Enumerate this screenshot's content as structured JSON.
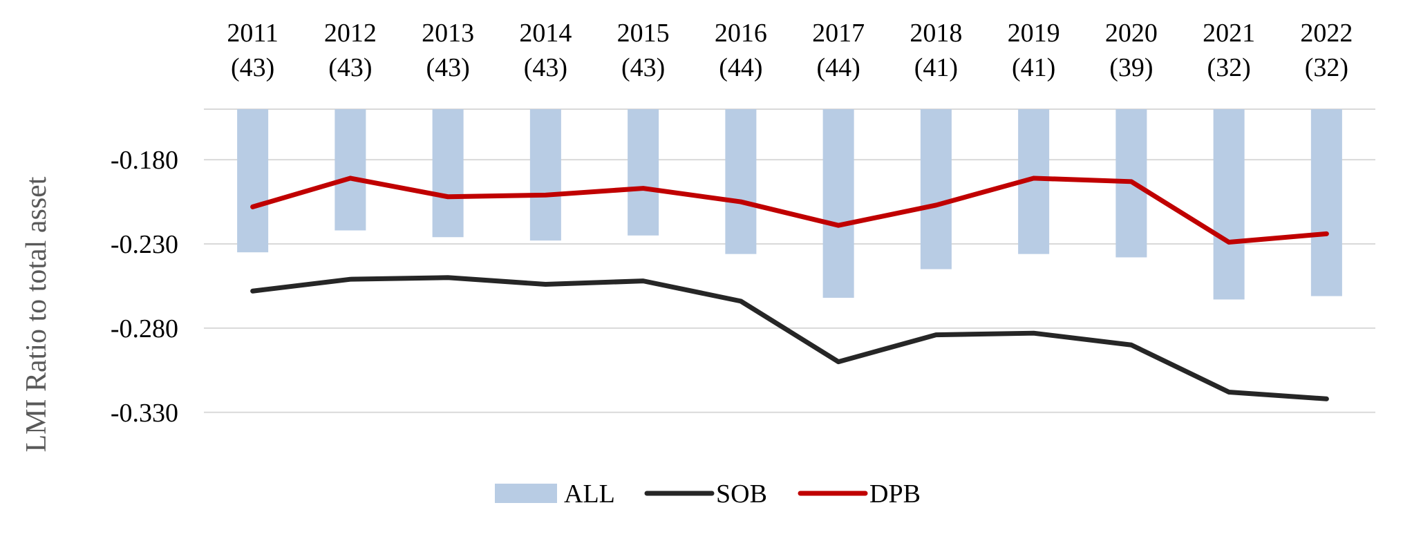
{
  "chart_data": {
    "type": "bar+line",
    "categories": [
      "2011",
      "2012",
      "2013",
      "2014",
      "2015",
      "2016",
      "2017",
      "2018",
      "2019",
      "2020",
      "2021",
      "2022"
    ],
    "category_counts": [
      "(43)",
      "(43)",
      "(43)",
      "(43)",
      "(43)",
      "(44)",
      "(44)",
      "(41)",
      "(41)",
      "(39)",
      "(32)",
      "(32)"
    ],
    "ylabel": "LMI Ratio to total asset",
    "ylim": [
      -0.342,
      -0.15
    ],
    "yticks": [
      -0.18,
      -0.23,
      -0.28,
      -0.33
    ],
    "ytick_labels": [
      "-0.180",
      "-0.230",
      "-0.280",
      "-0.330"
    ],
    "grid": true,
    "series": [
      {
        "name": "ALL",
        "type": "bar",
        "color": "#b8cce4",
        "values": [
          -0.235,
          -0.222,
          -0.226,
          -0.228,
          -0.225,
          -0.236,
          -0.262,
          -0.245,
          -0.236,
          -0.238,
          -0.263,
          -0.261
        ]
      },
      {
        "name": "SOB",
        "type": "line",
        "color": "#262626",
        "values": [
          -0.258,
          -0.251,
          -0.25,
          -0.254,
          -0.252,
          -0.264,
          -0.3,
          -0.284,
          -0.283,
          -0.29,
          -0.318,
          -0.322
        ]
      },
      {
        "name": "DPB",
        "type": "line",
        "color": "#c00000",
        "values": [
          -0.208,
          -0.191,
          -0.202,
          -0.201,
          -0.197,
          -0.205,
          -0.219,
          -0.207,
          -0.191,
          -0.193,
          -0.229,
          -0.224
        ]
      }
    ],
    "legend": {
      "position": "bottom-center",
      "items": [
        "ALL",
        "SOB",
        "DPB"
      ]
    }
  }
}
